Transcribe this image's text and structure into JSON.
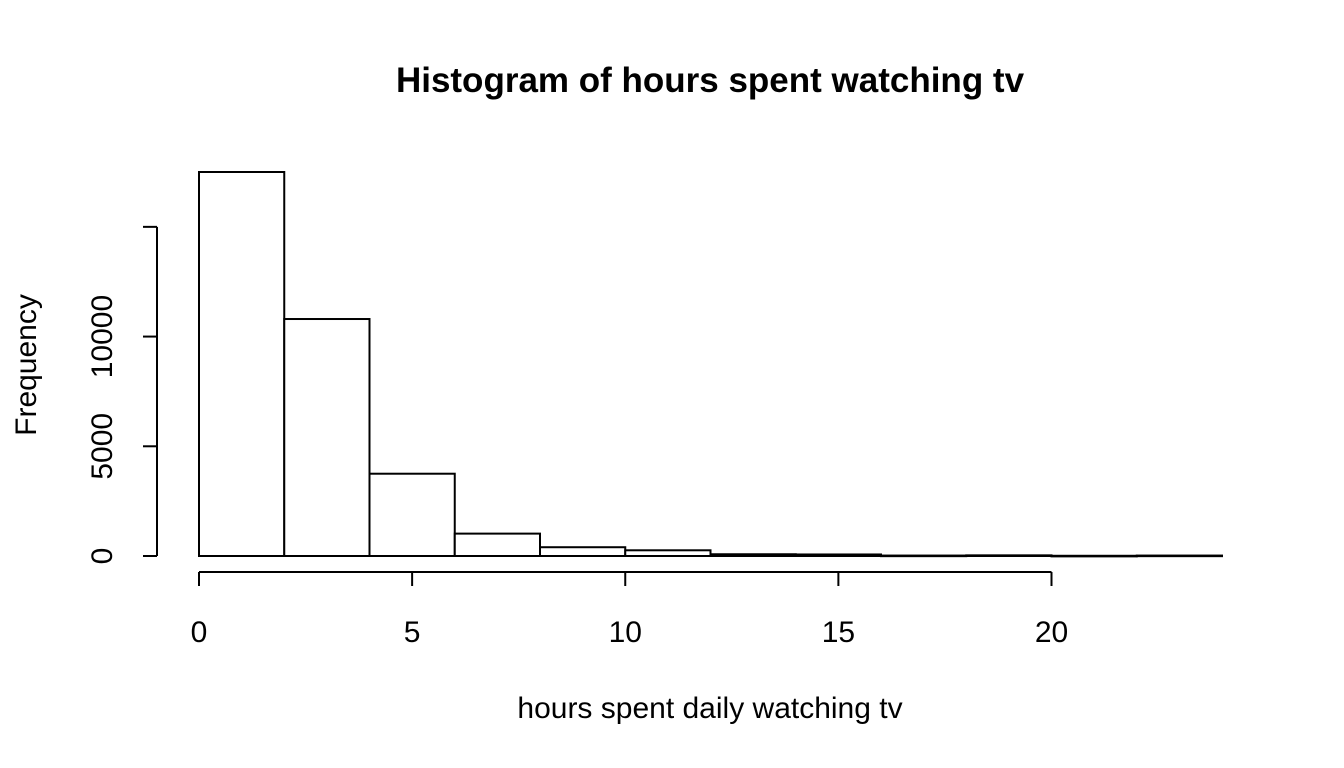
{
  "chart_data": {
    "type": "bar",
    "title": "Histogram of hours spent watching tv",
    "xlabel": "hours spent daily watching tv",
    "ylabel": "Frequency",
    "bins": [
      {
        "from": 0,
        "to": 2,
        "value": 17500
      },
      {
        "from": 2,
        "to": 4,
        "value": 10800
      },
      {
        "from": 4,
        "to": 6,
        "value": 3750
      },
      {
        "from": 6,
        "to": 8,
        "value": 1020
      },
      {
        "from": 8,
        "to": 10,
        "value": 400
      },
      {
        "from": 10,
        "to": 12,
        "value": 260
      },
      {
        "from": 12,
        "to": 14,
        "value": 80
      },
      {
        "from": 14,
        "to": 16,
        "value": 70
      },
      {
        "from": 16,
        "to": 18,
        "value": 20
      },
      {
        "from": 18,
        "to": 20,
        "value": 30
      },
      {
        "from": 20,
        "to": 22,
        "value": 10
      },
      {
        "from": 22,
        "to": 24,
        "value": 20
      }
    ],
    "xlim": [
      0,
      24
    ],
    "ylim": [
      0,
      17500
    ],
    "x_ticks": [
      0,
      5,
      10,
      15,
      20
    ],
    "y_ticks": [
      0,
      5000,
      10000,
      15000
    ],
    "x_tick_labels": [
      "0",
      "5",
      "10",
      "15",
      "20"
    ],
    "y_tick_labels": [
      "0",
      "5000",
      "10000",
      ""
    ],
    "bar_fill": "#ffffff",
    "bar_stroke": "#000000",
    "grid": false
  }
}
